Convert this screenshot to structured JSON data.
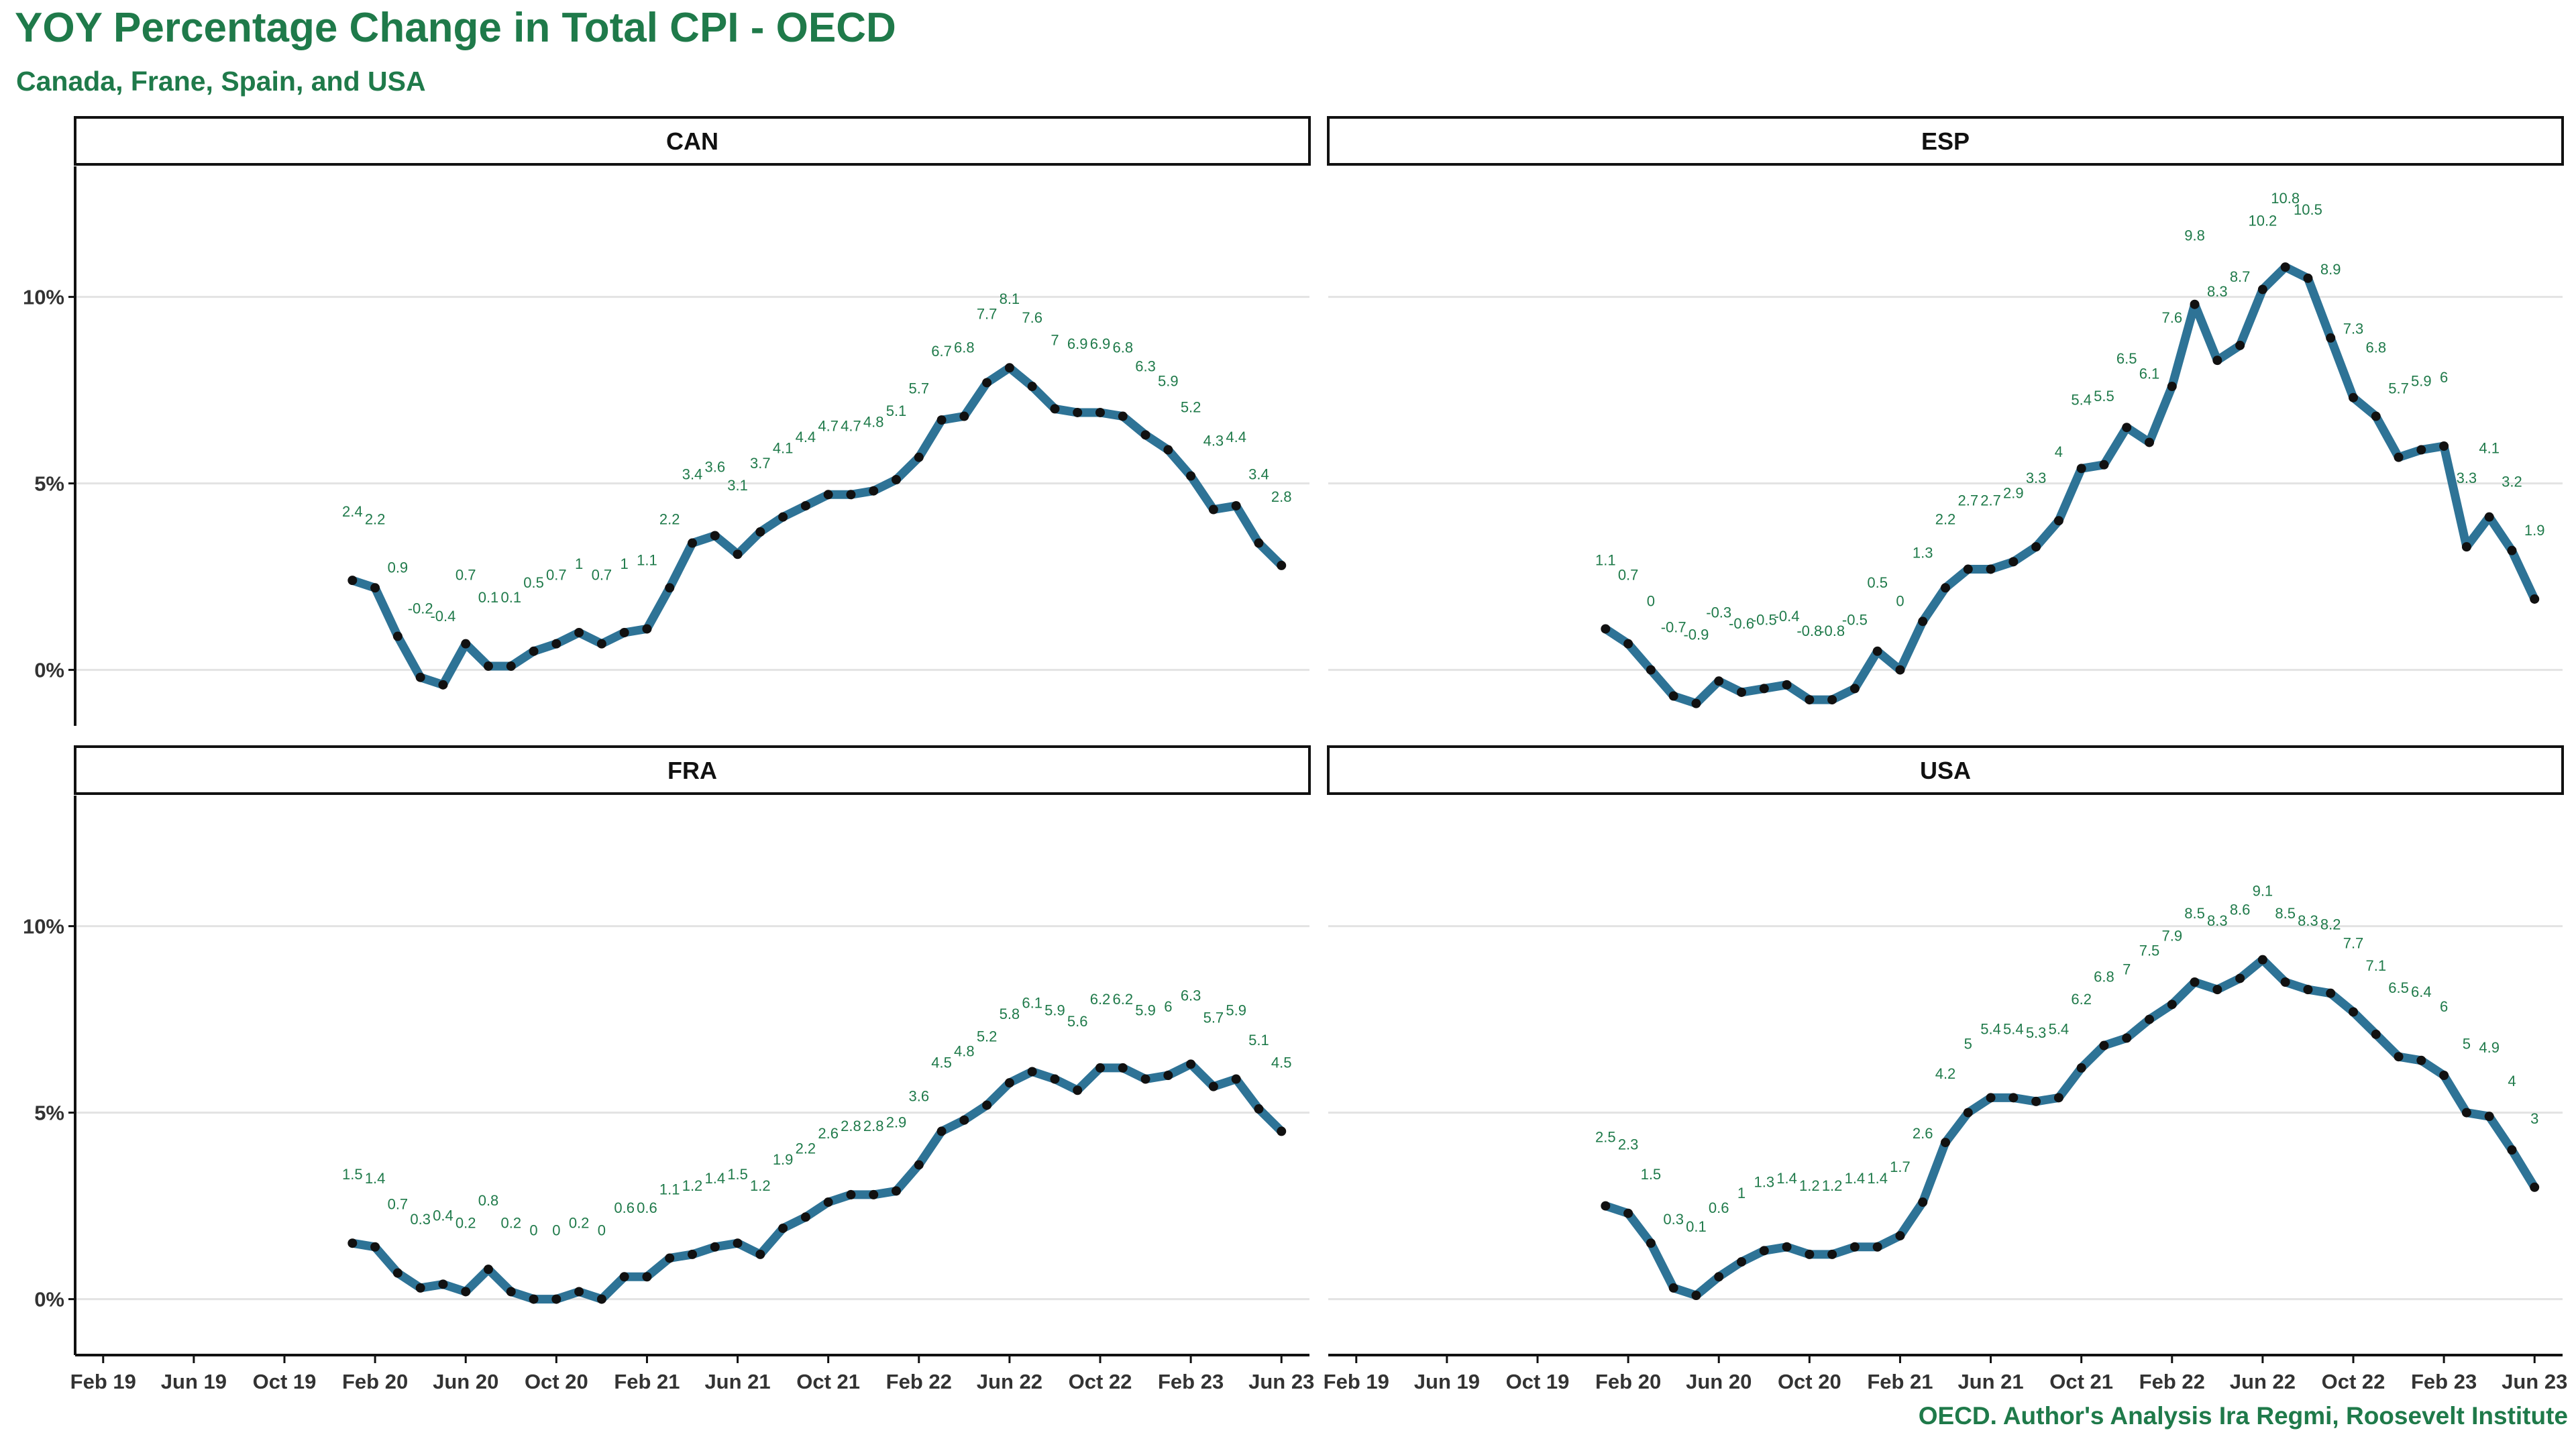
{
  "title": "YOY Percentage Change in Total CPI - OECD",
  "subtitle": "Canada, Frane, Spain, and USA",
  "caption": "OECD. Author's Analysis Ira Regmi, Roosevelt Institute",
  "colors": {
    "line": "#2e7396",
    "point": "#111111",
    "label": "#1f7a4a",
    "title": "#1f7a4a",
    "grid": "#e3e3e3"
  },
  "chart_data": {
    "type": "line",
    "layout": "facet 2x2",
    "x_axis": {
      "ticks": [
        "Feb 19",
        "Jun 19",
        "Oct 19",
        "Feb 20",
        "Jun 20",
        "Oct 20",
        "Feb 21",
        "Jun 21",
        "Oct 21",
        "Feb 22",
        "Jun 22",
        "Oct 22",
        "Feb 23",
        "Jun 23"
      ],
      "range": [
        "2019-01",
        "2023-07"
      ]
    },
    "y_axis": {
      "ticks": [
        "0%",
        "5%",
        "10%"
      ],
      "tick_values": [
        0,
        5,
        10
      ],
      "range": [
        -1.5,
        13.5
      ]
    },
    "grid": true,
    "data_labels": true,
    "x": [
      "2020-01",
      "2020-02",
      "2020-03",
      "2020-04",
      "2020-05",
      "2020-06",
      "2020-07",
      "2020-08",
      "2020-09",
      "2020-10",
      "2020-11",
      "2020-12",
      "2021-01",
      "2021-02",
      "2021-03",
      "2021-04",
      "2021-05",
      "2021-06",
      "2021-07",
      "2021-08",
      "2021-09",
      "2021-10",
      "2021-11",
      "2021-12",
      "2022-01",
      "2022-02",
      "2022-03",
      "2022-04",
      "2022-05",
      "2022-06",
      "2022-07",
      "2022-08",
      "2022-09",
      "2022-10",
      "2022-11",
      "2022-12",
      "2023-01",
      "2023-02",
      "2023-03",
      "2023-04",
      "2023-05",
      "2023-06"
    ],
    "series": [
      {
        "name": "CAN",
        "values": [
          2.4,
          2.2,
          0.9,
          -0.2,
          -0.4,
          0.7,
          0.1,
          0.1,
          0.5,
          0.7,
          1,
          0.7,
          1,
          1.1,
          2.2,
          3.4,
          3.6,
          3.1,
          3.7,
          4.1,
          4.4,
          4.7,
          4.7,
          4.8,
          5.1,
          5.7,
          6.7,
          6.8,
          7.7,
          8.1,
          7.6,
          7,
          6.9,
          6.9,
          6.8,
          6.3,
          5.9,
          5.2,
          4.3,
          4.4,
          3.4,
          2.8
        ]
      },
      {
        "name": "ESP",
        "values": [
          1.1,
          0.7,
          0,
          -0.7,
          -0.9,
          -0.3,
          -0.6,
          -0.5,
          -0.4,
          -0.8,
          -0.8,
          -0.5,
          0.5,
          0,
          1.3,
          2.2,
          2.7,
          2.7,
          2.9,
          3.3,
          4,
          5.4,
          5.5,
          6.5,
          6.1,
          7.6,
          9.8,
          8.3,
          8.7,
          10.2,
          10.8,
          10.5,
          8.9,
          7.3,
          6.8,
          5.7,
          5.9,
          6,
          3.3,
          4.1,
          3.2,
          1.9
        ]
      },
      {
        "name": "FRA",
        "values": [
          1.5,
          1.4,
          0.7,
          0.3,
          0.4,
          0.2,
          0.8,
          0.2,
          0,
          0,
          0.2,
          0,
          0.6,
          0.6,
          1.1,
          1.2,
          1.4,
          1.5,
          1.2,
          1.9,
          2.2,
          2.6,
          2.8,
          2.8,
          2.9,
          3.6,
          4.5,
          4.8,
          5.2,
          5.8,
          6.1,
          5.9,
          5.6,
          6.2,
          6.2,
          5.9,
          6,
          6.3,
          5.7,
          5.9,
          5.1,
          4.5
        ]
      },
      {
        "name": "USA",
        "values": [
          2.5,
          2.3,
          1.5,
          0.3,
          0.1,
          0.6,
          1,
          1.3,
          1.4,
          1.2,
          1.2,
          1.4,
          1.4,
          1.7,
          2.6,
          4.2,
          5,
          5.4,
          5.4,
          5.3,
          5.4,
          6.2,
          6.8,
          7,
          7.5,
          7.9,
          8.5,
          8.3,
          8.6,
          9.1,
          8.5,
          8.3,
          8.2,
          7.7,
          7.1,
          6.5,
          6.4,
          6,
          5,
          4.9,
          4,
          3
        ]
      }
    ]
  }
}
